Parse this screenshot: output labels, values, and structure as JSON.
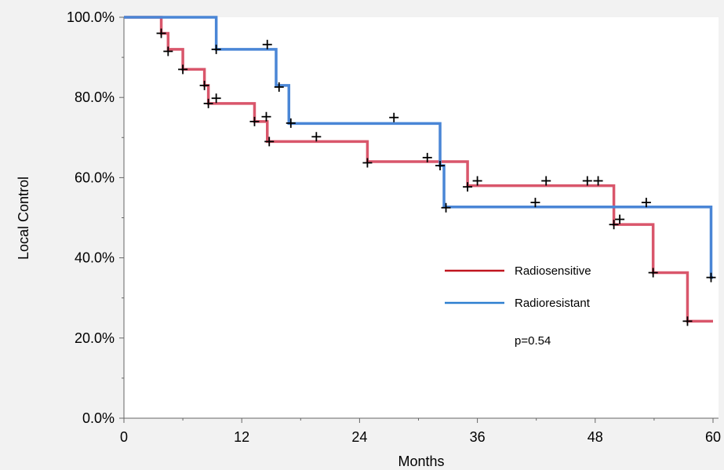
{
  "chart_data": {
    "type": "line",
    "subtype": "kaplan-meier-step",
    "title": "",
    "xlabel": "Months",
    "ylabel": "Local Control",
    "xlim": [
      0,
      60
    ],
    "ylim": [
      0,
      100
    ],
    "x_ticks": [
      "0",
      "12",
      "24",
      "36",
      "48",
      "60"
    ],
    "y_ticks": [
      "0.0%",
      "20.0%",
      "40.0%",
      "60.0%",
      "80.0%",
      "100.0%"
    ],
    "grid": false,
    "legend_position": "lower-right",
    "annotation": "p=0.54",
    "series": [
      {
        "name": "Radiosensitive",
        "color": "#d9566b",
        "legend_color": "#c0151f",
        "steps": [
          [
            0,
            100
          ],
          [
            3.8,
            96
          ],
          [
            4.5,
            92
          ],
          [
            6,
            87
          ],
          [
            8.2,
            83
          ],
          [
            8.6,
            78.5
          ],
          [
            13.3,
            74
          ],
          [
            14.6,
            69
          ],
          [
            24.8,
            64
          ],
          [
            35,
            58
          ],
          [
            49.9,
            48.3
          ],
          [
            53.9,
            36.3
          ],
          [
            57.4,
            24.2
          ]
        ],
        "x_end": 60,
        "censored": [
          [
            3.8,
            96
          ],
          [
            4.5,
            91.5
          ],
          [
            6,
            87
          ],
          [
            8.2,
            83
          ],
          [
            8.6,
            78.5
          ],
          [
            9.4,
            79.8
          ],
          [
            13.3,
            74
          ],
          [
            14.5,
            75.2
          ],
          [
            14.8,
            69
          ],
          [
            19.6,
            70.2
          ],
          [
            24.8,
            63.7
          ],
          [
            35,
            57.7
          ],
          [
            36,
            59.2
          ],
          [
            47.2,
            59.2
          ],
          [
            48.3,
            59.2
          ],
          [
            49.9,
            48.3
          ],
          [
            50.5,
            49.6
          ],
          [
            53.9,
            36.3
          ],
          [
            57.4,
            24.2
          ]
        ]
      },
      {
        "name": "Radioresistant",
        "color": "#4a86d6",
        "legend_color": "#2d7fd0",
        "steps": [
          [
            0,
            100
          ],
          [
            9.4,
            92
          ],
          [
            15.5,
            83
          ],
          [
            16.8,
            73.5
          ],
          [
            32.2,
            63
          ],
          [
            32.6,
            52.7
          ],
          [
            59.8,
            35.1
          ]
        ],
        "x_end": 60,
        "censored": [
          [
            9.4,
            92
          ],
          [
            14.6,
            93.2
          ],
          [
            15.8,
            82.6
          ],
          [
            17,
            73.6
          ],
          [
            27.5,
            75
          ],
          [
            30.9,
            65
          ],
          [
            32.2,
            63
          ],
          [
            32.8,
            52.5
          ],
          [
            41.9,
            53.8
          ],
          [
            43,
            59.2
          ],
          [
            53.2,
            53.8
          ],
          [
            59.8,
            35.1
          ]
        ]
      }
    ]
  }
}
